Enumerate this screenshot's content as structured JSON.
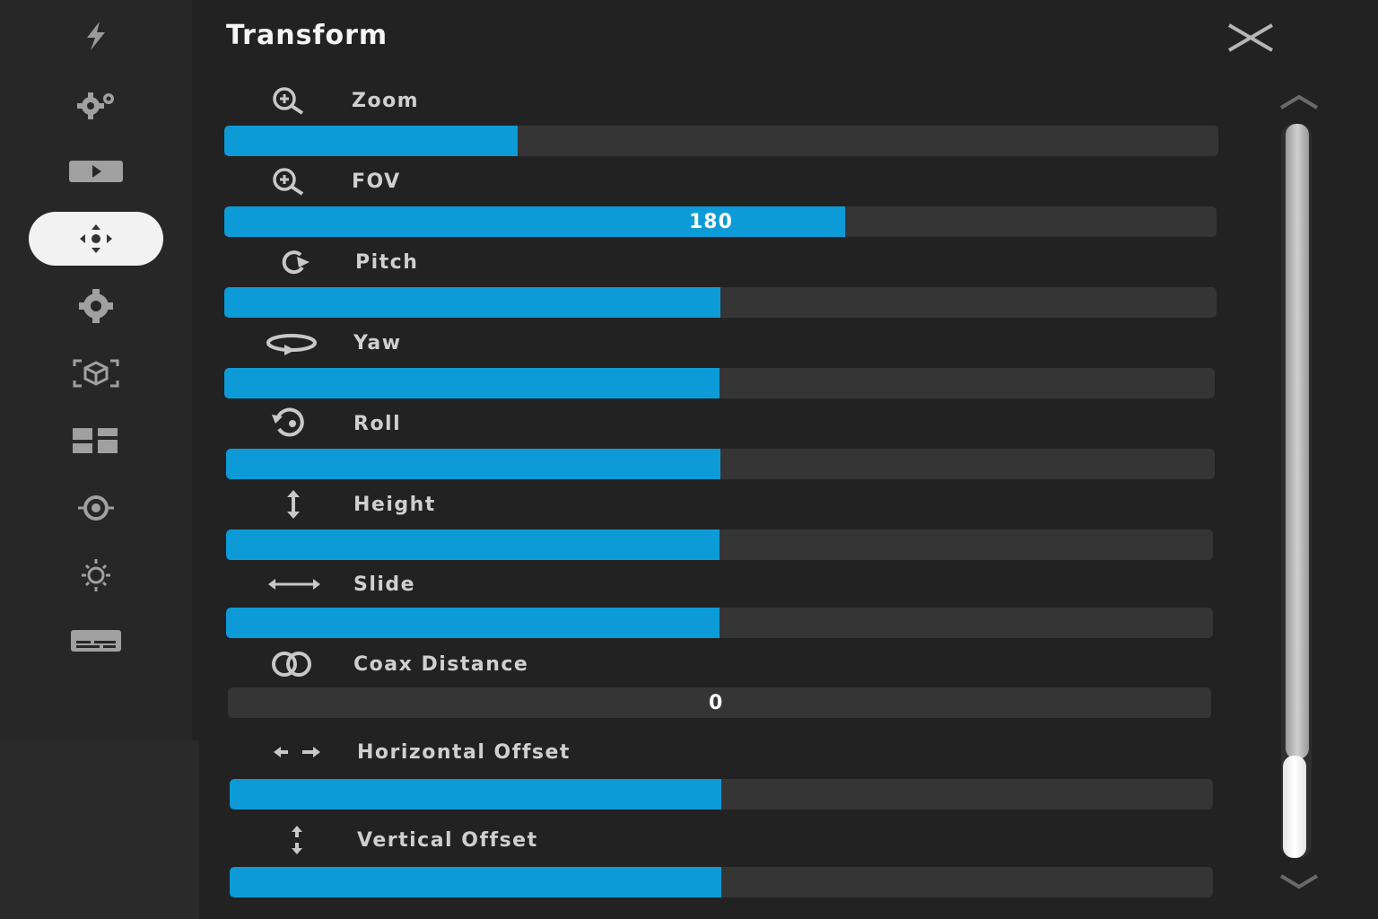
{
  "panel": {
    "title": "Transform",
    "close_icon": "close-icon"
  },
  "sidebar": {
    "items": [
      {
        "name": "lightning-icon",
        "active": false
      },
      {
        "name": "gears-icon",
        "active": false
      },
      {
        "name": "video-play-icon",
        "active": false
      },
      {
        "name": "move-arrows-icon",
        "active": true
      },
      {
        "name": "settings-gear-icon",
        "active": false
      },
      {
        "name": "3d-box-icon",
        "active": false
      },
      {
        "name": "dashboard-grid-icon",
        "active": false
      },
      {
        "name": "target-crosshair-icon",
        "active": false
      },
      {
        "name": "brightness-icon",
        "active": false
      },
      {
        "name": "subtitles-icon",
        "active": false
      }
    ]
  },
  "controls": [
    {
      "label": "Zoom",
      "icon": "zoom-in-icon",
      "fill_fraction": 0.295,
      "value_text": ""
    },
    {
      "label": "FOV",
      "icon": "zoom-in-icon",
      "fill_fraction": 0.626,
      "value_text": "180"
    },
    {
      "label": "Pitch",
      "icon": "pitch-rotate-icon",
      "fill_fraction": 0.5,
      "value_text": ""
    },
    {
      "label": "Yaw",
      "icon": "yaw-rotate-icon",
      "fill_fraction": 0.5,
      "value_text": ""
    },
    {
      "label": "Roll",
      "icon": "roll-rotate-icon",
      "fill_fraction": 0.5,
      "value_text": ""
    },
    {
      "label": "Height",
      "icon": "vertical-arrows-icon",
      "fill_fraction": 0.5,
      "value_text": ""
    },
    {
      "label": "Slide",
      "icon": "horizontal-arrows-icon",
      "fill_fraction": 0.5,
      "value_text": ""
    },
    {
      "label": "Coax Distance",
      "icon": "linked-circles-icon",
      "fill_fraction": 0,
      "value_text": "0"
    },
    {
      "label": "Horizontal Offset",
      "icon": "horizontal-offset-icon",
      "fill_fraction": 0.5,
      "value_text": ""
    },
    {
      "label": "Vertical Offset",
      "icon": "vertical-offset-icon",
      "fill_fraction": 0.5,
      "value_text": ""
    }
  ],
  "colors": {
    "accent": "#0d9bd8",
    "track": "#353535",
    "background": "#222222",
    "sidebar": "#272727"
  }
}
